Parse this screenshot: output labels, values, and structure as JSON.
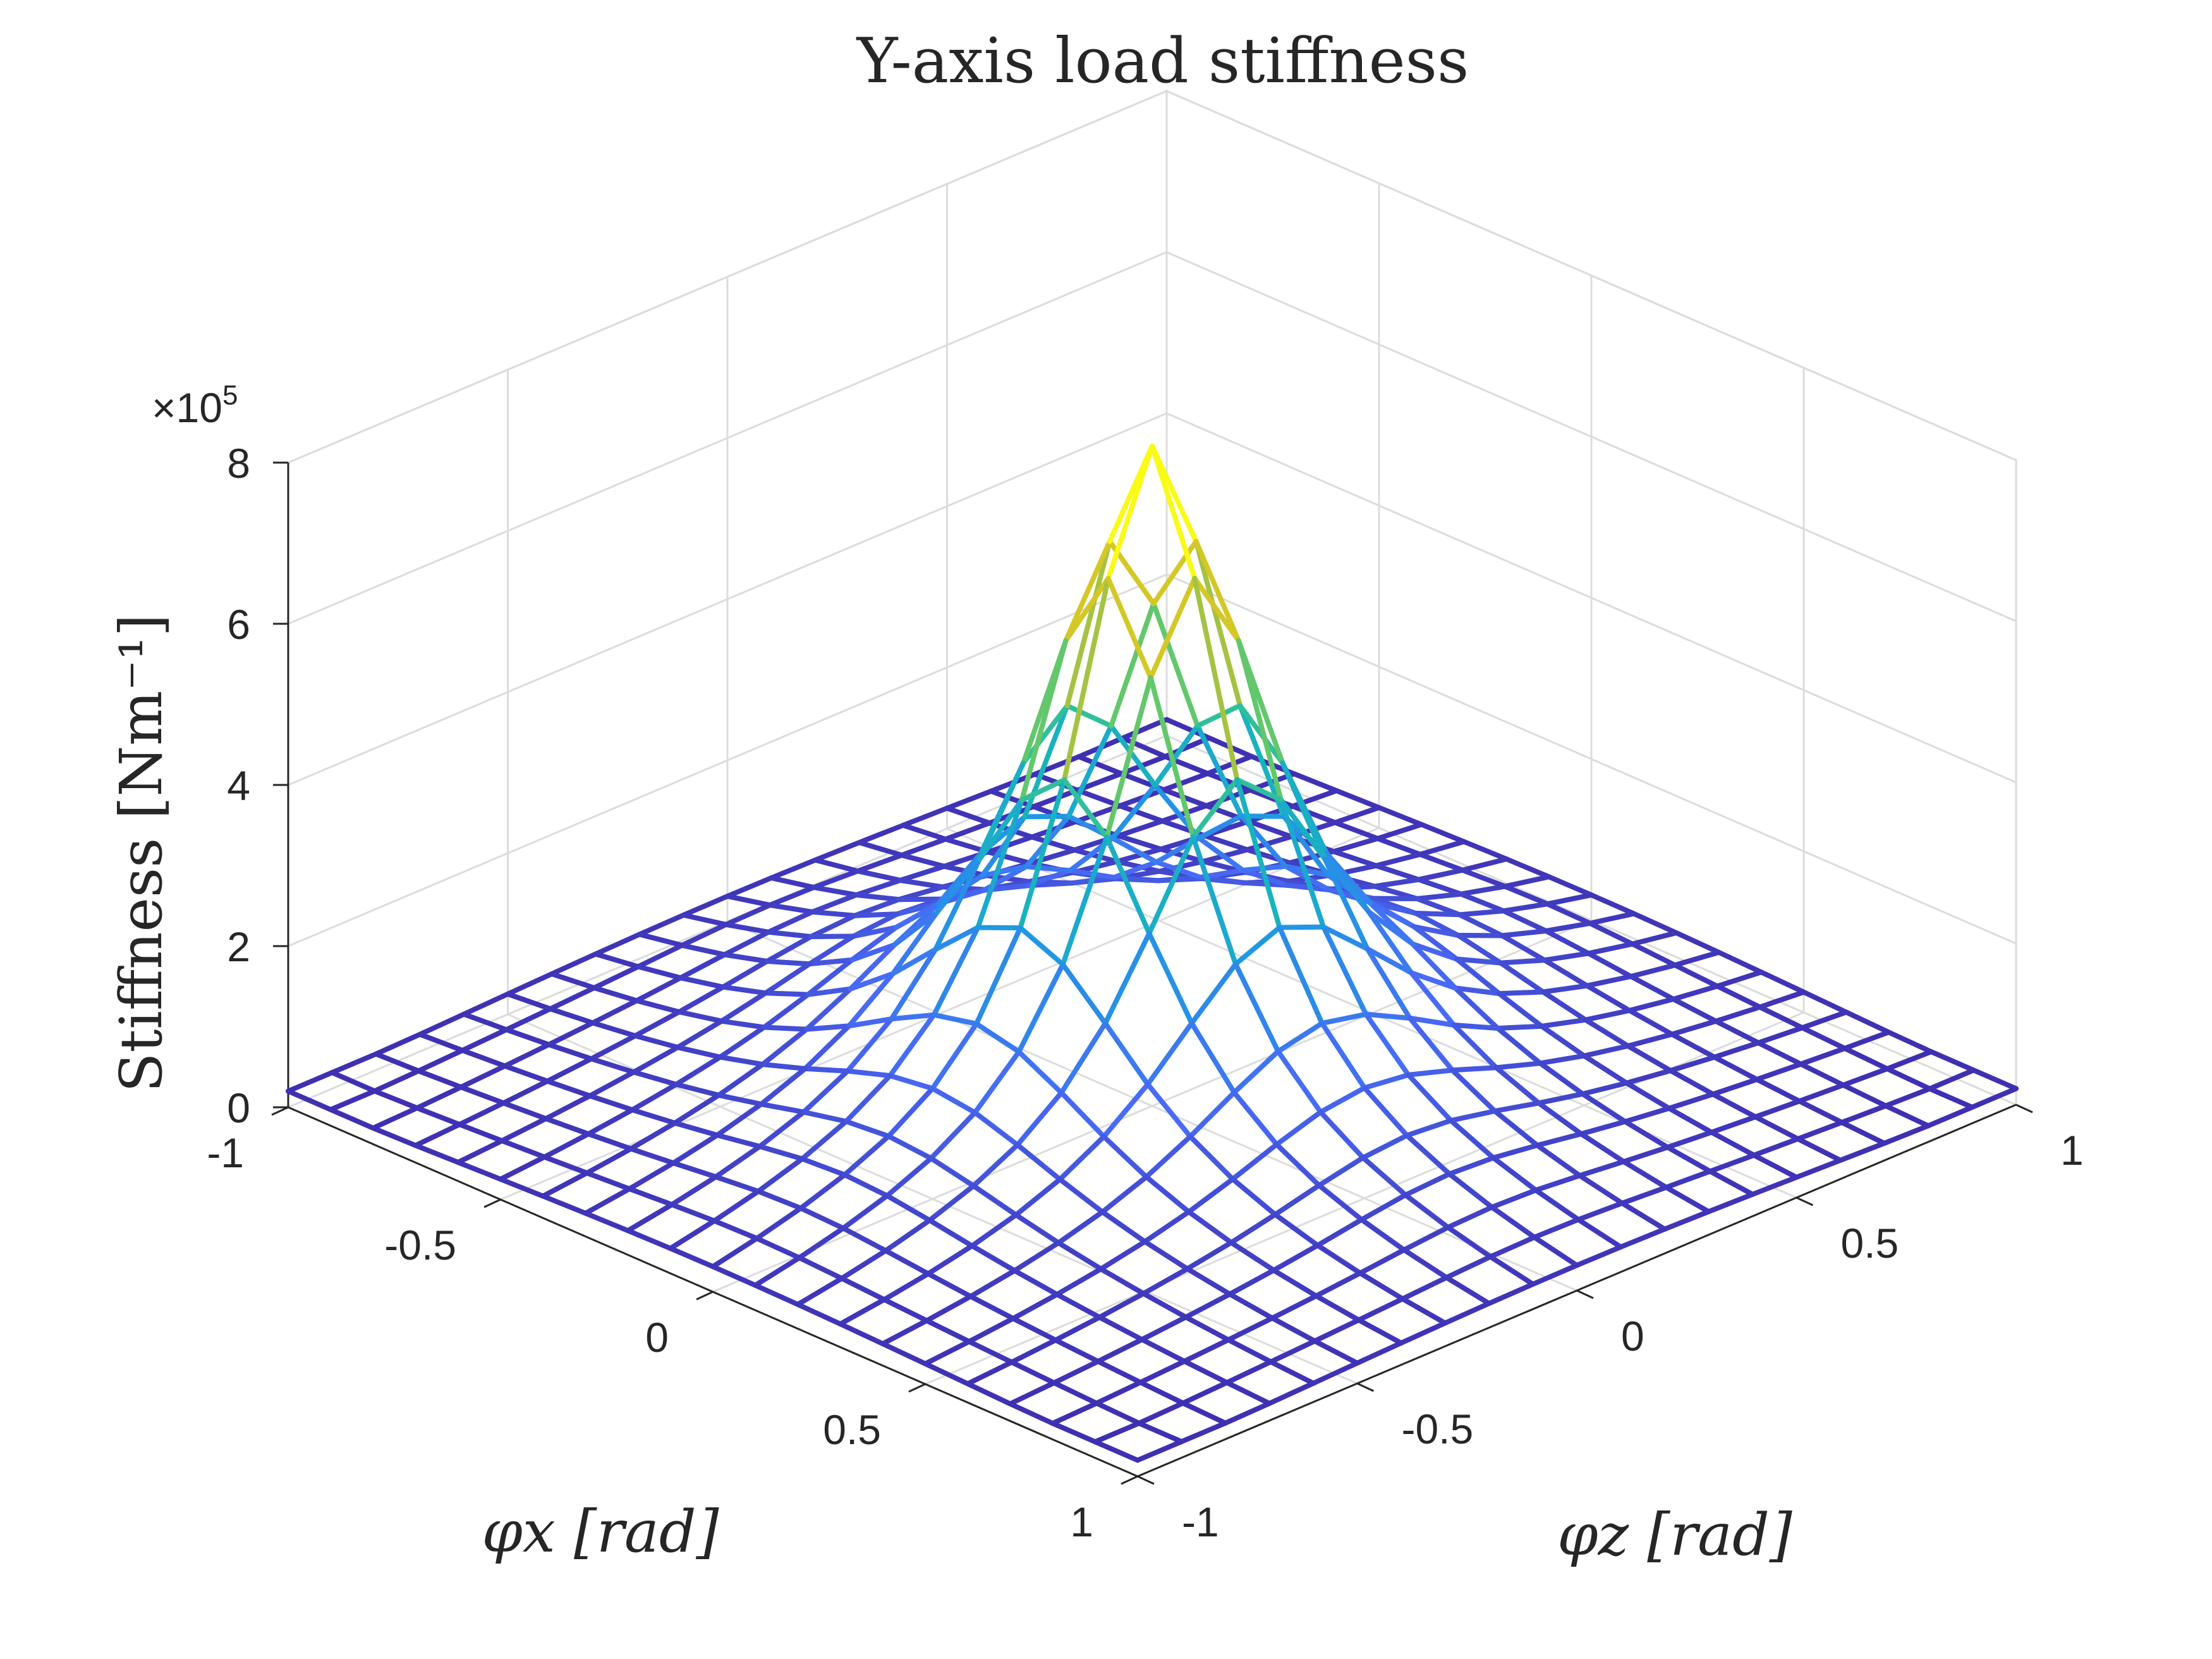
{
  "chart_data": {
    "type": "surface",
    "title": "Y-axis load stiffness",
    "zlabel": "Stiffness [Nm⁻¹]",
    "xlabel": "φx [rad]",
    "ylabel": "φz [rad]",
    "xlim": [
      -1,
      1
    ],
    "ylim": [
      -1,
      1
    ],
    "zlim": [
      0,
      800000
    ],
    "z_exponent_label": "×10",
    "z_exponent_power": "5",
    "x_ticks": [
      "-1",
      "-0.5",
      "0",
      "0.5",
      "1"
    ],
    "y_ticks": [
      "-1",
      "-0.5",
      "0",
      "0.5",
      "1"
    ],
    "z_ticks": [
      "0",
      "2",
      "4",
      "6",
      "8"
    ],
    "z_tick_values": [
      0,
      2,
      4,
      6,
      8
    ],
    "grid": true,
    "colormap": "parula",
    "mesh_x": [
      -1.0,
      -0.9,
      -0.8,
      -0.7,
      -0.6,
      -0.5,
      -0.4,
      -0.3,
      -0.2,
      -0.1,
      0.0,
      0.1,
      0.2,
      0.3,
      0.4,
      0.5,
      0.6,
      0.7,
      0.8,
      0.9,
      1.0
    ],
    "mesh_y": [
      -1.0,
      -0.9,
      -0.8,
      -0.7,
      -0.6,
      -0.5,
      -0.4,
      -0.3,
      -0.2,
      -0.1,
      0.0,
      0.1,
      0.2,
      0.3,
      0.4,
      0.5,
      0.6,
      0.7,
      0.8,
      0.9,
      1.0
    ],
    "peak_value": 720000,
    "peak_location": [
      0,
      0
    ],
    "edge_value": 20000,
    "stiffness_model": "peak / (1 + 8*r^2) + cross ridges, stiffness units Nm^-1",
    "colors": {
      "low": "#3e26a8",
      "mid": "#1fb5c9",
      "high": "#f9fb15"
    }
  }
}
